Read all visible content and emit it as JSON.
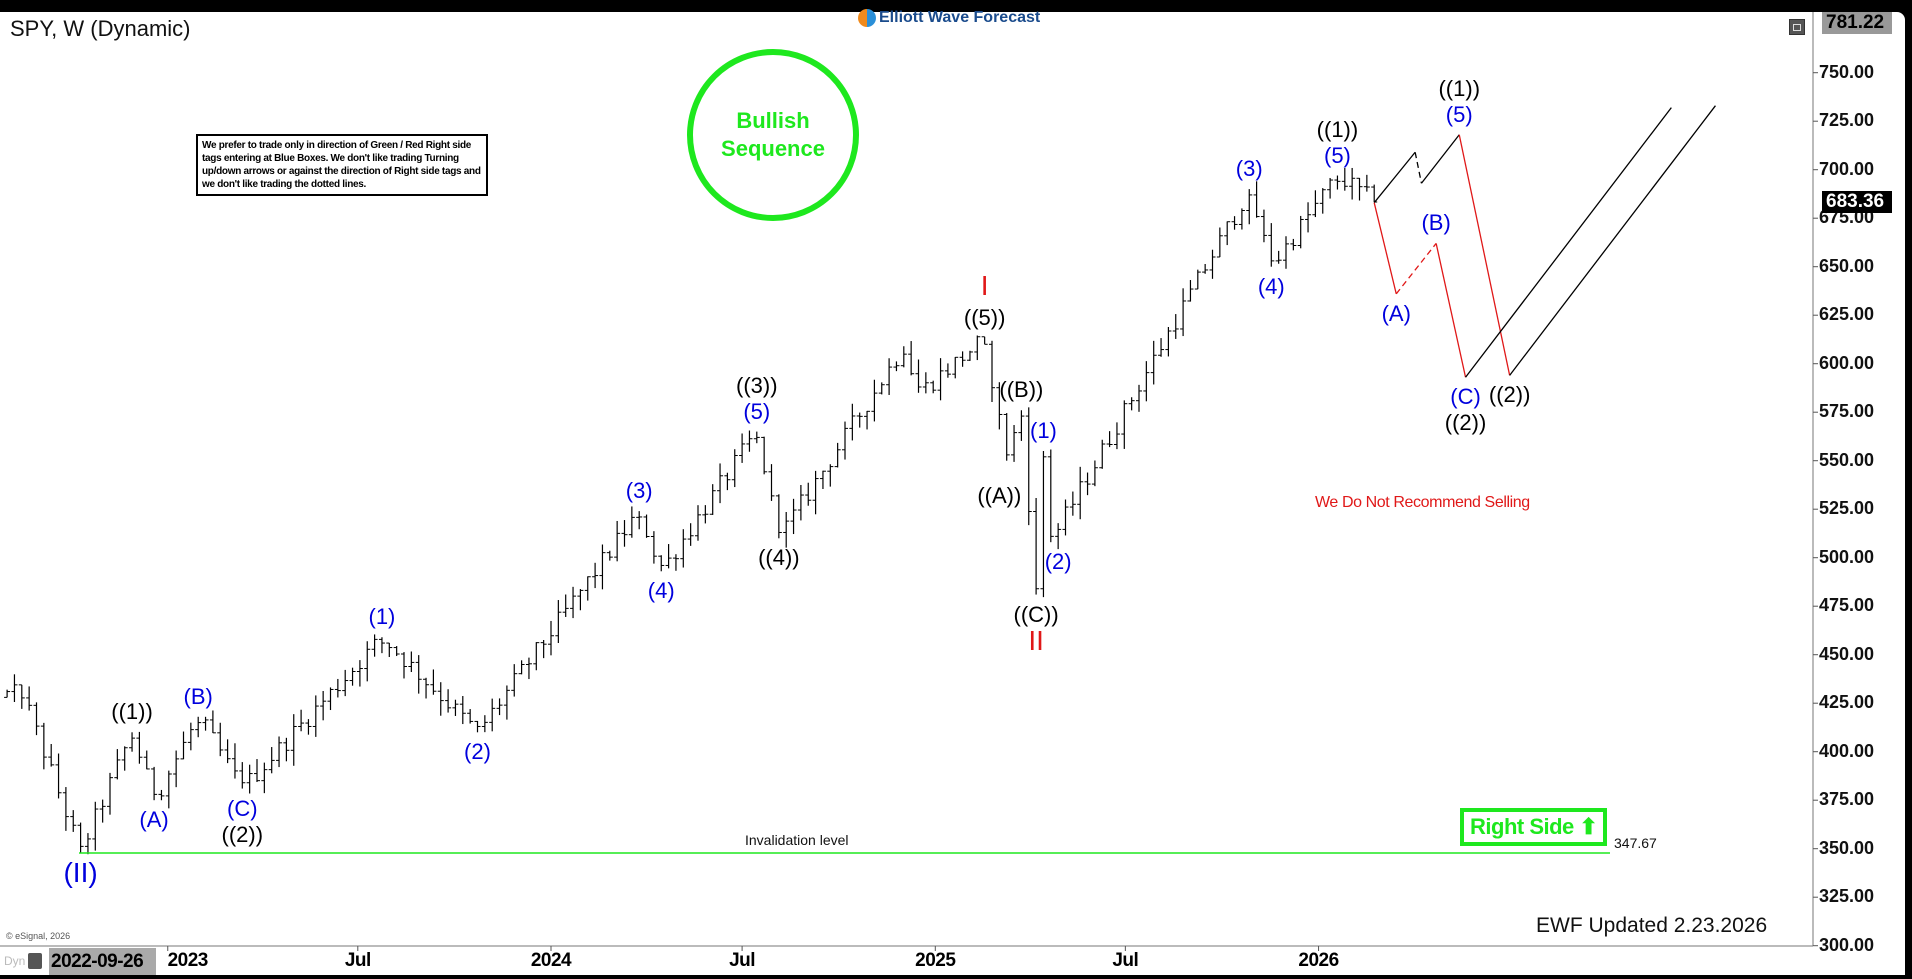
{
  "header": {
    "title": "SPY, W (Dynamic)",
    "logo_text": "Elliott Wave Forecast"
  },
  "note": "We prefer to trade only in direction of Green / Red Right side tags entering at Blue Boxes. We don't like trading Turning up/down arrows or against the direction of Right side tags and we don't like trading the dotted lines.",
  "bullish": {
    "line1": "Bullish",
    "line2": "Sequence",
    "color": "#1ee81e"
  },
  "invalidation": {
    "label": "Invalidation level",
    "value": "347.67",
    "price": 347.67,
    "color": "#1ee81e"
  },
  "right_side": {
    "label": "Right Side",
    "icon": "arrow-up-icon"
  },
  "not_selling": "We Do Not Recommend Selling",
  "updated": "EWF Updated 2.23.2026",
  "copyright": "© eSignal, 2026",
  "footer": {
    "dyn": "Dyn",
    "cursor_date": "2022-09-26"
  },
  "chart_data": {
    "type": "ohlc-bar",
    "symbol": "SPY",
    "interval": "W",
    "ylim": [
      300,
      781.22
    ],
    "y_ticks": [
      "750.00",
      "725.00",
      "700.00",
      "675.00",
      "650.00",
      "625.00",
      "600.00",
      "575.00",
      "550.00",
      "525.00",
      "500.00",
      "475.00",
      "450.00",
      "425.00",
      "400.00",
      "375.00",
      "350.00",
      "325.00",
      "300.00"
    ],
    "x_ticks": [
      {
        "label": "2023",
        "date": "2023-01-01"
      },
      {
        "label": "Jul",
        "date": "2023-07-01"
      },
      {
        "label": "2024",
        "date": "2024-01-01"
      },
      {
        "label": "Jul",
        "date": "2024-07-01"
      },
      {
        "label": "2025",
        "date": "2025-01-01"
      },
      {
        "label": "Jul",
        "date": "2025-07-01"
      },
      {
        "label": "2026",
        "date": "2026-01-01"
      }
    ],
    "high_tag": "781.22",
    "last_price": "683.36",
    "last_value": 683.36,
    "pivots": [
      [
        "2022-08-01",
        428
      ],
      [
        "2022-08-15",
        431
      ],
      [
        "2022-10-10",
        348
      ],
      [
        "2022-11-28",
        410
      ],
      [
        "2022-12-19",
        375
      ],
      [
        "2023-01-30",
        418
      ],
      [
        "2023-03-13",
        381
      ],
      [
        "2023-07-24",
        459
      ],
      [
        "2023-10-23",
        410
      ],
      [
        "2024-03-25",
        524
      ],
      [
        "2024-04-15",
        493
      ],
      [
        "2024-07-15",
        565
      ],
      [
        "2024-08-05",
        510
      ],
      [
        "2024-12-02",
        609
      ],
      [
        "2024-12-16",
        585
      ],
      [
        "2025-02-17",
        613
      ],
      [
        "2025-03-10",
        550
      ],
      [
        "2025-03-24",
        576
      ],
      [
        "2025-04-07",
        481
      ],
      [
        "2025-04-14",
        555
      ],
      [
        "2025-04-21",
        508
      ],
      [
        "2025-10-27",
        690
      ],
      [
        "2025-11-17",
        650
      ],
      [
        "2026-01-19",
        697
      ],
      [
        "2026-02-23",
        683.36
      ]
    ],
    "projection": [
      {
        "from": [
          "2026-02-23",
          683
        ],
        "to": [
          "2026-04-03",
          709
        ],
        "color": "#000000",
        "dashed": false
      },
      {
        "from": [
          "2026-04-03",
          709
        ],
        "to": [
          "2026-04-09",
          693
        ],
        "color": "#000000",
        "dashed": true
      },
      {
        "from": [
          "2026-04-09",
          693
        ],
        "to": [
          "2026-05-15",
          718
        ],
        "color": "#000000",
        "dashed": false
      },
      {
        "from": [
          "2026-05-15",
          718
        ],
        "to": [
          "2026-07-02",
          594
        ],
        "color": "#e01818",
        "dashed": false
      },
      {
        "from": [
          "2026-02-23",
          683
        ],
        "to": [
          "2026-03-16",
          636
        ],
        "color": "#e01818",
        "dashed": false
      },
      {
        "from": [
          "2026-03-16",
          636
        ],
        "to": [
          "2026-04-23",
          662
        ],
        "color": "#e01818",
        "dashed": true
      },
      {
        "from": [
          "2026-04-23",
          662
        ],
        "to": [
          "2026-05-21",
          593
        ],
        "color": "#e01818",
        "dashed": false
      },
      {
        "from": [
          "2026-05-21",
          593
        ],
        "to": [
          "2026-12-03",
          732
        ],
        "color": "#000000",
        "dashed": false
      },
      {
        "from": [
          "2026-07-02",
          594
        ],
        "to": [
          "2027-01-14",
          733
        ],
        "color": "#000000",
        "dashed": false
      }
    ],
    "wave_labels": [
      {
        "text": "((1))",
        "color": "#000000",
        "date": "2022-11-28",
        "price": 410,
        "place": "above"
      },
      {
        "text": "(A)",
        "color": "#0000dd",
        "date": "2022-12-19",
        "price": 375,
        "place": "below"
      },
      {
        "text": "(B)",
        "color": "#0000dd",
        "date": "2023-01-30",
        "price": 418,
        "place": "above"
      },
      {
        "text": "(C)",
        "color": "#0000dd",
        "date": "2023-03-13",
        "price": 381,
        "place": "below"
      },
      {
        "text": "((2))",
        "color": "#000000",
        "date": "2023-03-13",
        "price": 381,
        "place": "below2"
      },
      {
        "text": "(II)",
        "color": "#0000dd",
        "date": "2022-10-10",
        "price": 348,
        "place": "below",
        "big": true
      },
      {
        "text": "(1)",
        "color": "#0000dd",
        "date": "2023-07-24",
        "price": 459,
        "place": "above"
      },
      {
        "text": "(2)",
        "color": "#0000dd",
        "date": "2023-10-23",
        "price": 410,
        "place": "below"
      },
      {
        "text": "(3)",
        "color": "#0000dd",
        "date": "2024-03-25",
        "price": 524,
        "place": "above"
      },
      {
        "text": "(4)",
        "color": "#0000dd",
        "date": "2024-04-15",
        "price": 493,
        "place": "below"
      },
      {
        "text": "(5)",
        "color": "#0000dd",
        "date": "2024-07-15",
        "price": 565,
        "place": "above"
      },
      {
        "text": "((3))",
        "color": "#000000",
        "date": "2024-07-15",
        "price": 565,
        "place": "above2"
      },
      {
        "text": "((4))",
        "color": "#000000",
        "date": "2024-08-05",
        "price": 510,
        "place": "below"
      },
      {
        "text": "((5))",
        "color": "#000000",
        "date": "2025-02-17",
        "price": 613,
        "place": "above"
      },
      {
        "text": "I",
        "color": "#e01818",
        "date": "2025-02-17",
        "price": 613,
        "place": "above2",
        "big": true
      },
      {
        "text": "((A))",
        "color": "#000000",
        "date": "2025-03-03",
        "price": 542,
        "place": "below"
      },
      {
        "text": "((B))",
        "color": "#000000",
        "date": "2025-03-24",
        "price": 576,
        "place": "above"
      },
      {
        "text": "(1)",
        "color": "#0000dd",
        "date": "2025-04-14",
        "price": 555,
        "place": "above"
      },
      {
        "text": "(2)",
        "color": "#0000dd",
        "date": "2025-04-28",
        "price": 508,
        "place": "below"
      },
      {
        "text": "((C))",
        "color": "#000000",
        "date": "2025-04-07",
        "price": 481,
        "place": "below"
      },
      {
        "text": "II",
        "color": "#e01818",
        "date": "2025-04-07",
        "price": 481,
        "place": "below2",
        "big": true
      },
      {
        "text": "(3)",
        "color": "#0000dd",
        "date": "2025-10-27",
        "price": 690,
        "place": "above"
      },
      {
        "text": "(4)",
        "color": "#0000dd",
        "date": "2025-11-17",
        "price": 650,
        "place": "below"
      },
      {
        "text": "(5)",
        "color": "#0000dd",
        "date": "2026-01-19",
        "price": 697,
        "place": "above"
      },
      {
        "text": "((1))",
        "color": "#000000",
        "date": "2026-01-19",
        "price": 697,
        "place": "above2"
      },
      {
        "text": "(A)",
        "color": "#0000dd",
        "date": "2026-03-16",
        "price": 636,
        "place": "below"
      },
      {
        "text": "(B)",
        "color": "#0000dd",
        "date": "2026-04-23",
        "price": 662,
        "place": "above"
      },
      {
        "text": "(C)",
        "color": "#0000dd",
        "date": "2026-05-21",
        "price": 593,
        "place": "below"
      },
      {
        "text": "((2))",
        "color": "#000000",
        "date": "2026-05-21",
        "price": 593,
        "place": "below2"
      },
      {
        "text": "(5)",
        "color": "#0000dd",
        "date": "2026-05-15",
        "price": 718,
        "place": "above"
      },
      {
        "text": "((1))",
        "color": "#000000",
        "date": "2026-05-15",
        "price": 718,
        "place": "above2"
      },
      {
        "text": "((2))",
        "color": "#000000",
        "date": "2026-07-02",
        "price": 594,
        "place": "below"
      }
    ]
  }
}
